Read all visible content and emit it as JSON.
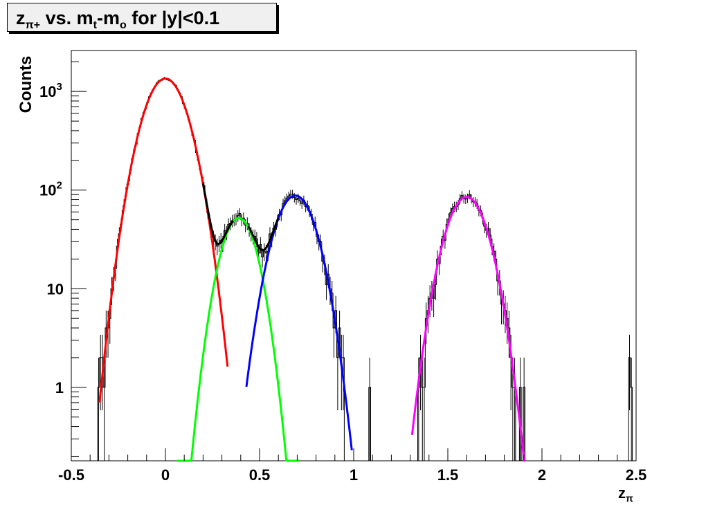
{
  "chart_data": {
    "type": "line",
    "title": {
      "main": "z",
      "main_sub": "π+",
      "part1": " vs. m",
      "part1_sub": "t",
      "part2": "-m",
      "part2_sub": "o",
      "part3": " for |y|<0.1"
    },
    "xlabel": {
      "main": "z",
      "sub": "π"
    },
    "ylabel": "Counts",
    "x_range": [
      -0.5,
      2.5
    ],
    "y_scale": "log",
    "y_range": [
      0.18,
      2600
    ],
    "grid": false,
    "x_ticks": [
      {
        "value": -0.5,
        "label": "-0.5"
      },
      {
        "value": 0,
        "label": "0"
      },
      {
        "value": 0.5,
        "label": "0.5"
      },
      {
        "value": 1,
        "label": "1"
      },
      {
        "value": 1.5,
        "label": "1.5"
      },
      {
        "value": 2,
        "label": "2"
      },
      {
        "value": 2.5,
        "label": "2.5"
      }
    ],
    "y_ticks": [
      {
        "value": 1,
        "label": "1"
      },
      {
        "value": 10,
        "label": "10"
      },
      {
        "value": 100,
        "label": "10",
        "exp": "2"
      },
      {
        "value": 1000,
        "label": "10",
        "exp": "3"
      }
    ],
    "gaussians": [
      {
        "color": "#ff0000",
        "amplitude": 1350,
        "mean": 0.0,
        "sigma": 0.09,
        "x_min": -0.35,
        "x_max": 0.33
      },
      {
        "color": "#00ff00",
        "amplitude": 52,
        "mean": 0.39,
        "sigma": 0.075,
        "x_min": 0.06,
        "x_max": 0.71
      },
      {
        "color": "#0000ff",
        "amplitude": 88,
        "mean": 0.69,
        "sigma": 0.087,
        "x_min": 0.43,
        "x_max": 0.99
      },
      {
        "color": "#ff00ff",
        "amplitude": 85,
        "mean": 1.6,
        "sigma": 0.087,
        "x_min": 1.31,
        "x_max": 1.91
      }
    ],
    "total_fit_color": "#000000",
    "histogram": {
      "x_min": -0.5,
      "x_max": 2.5,
      "bin_width": 0.01,
      "noise_seed": 7,
      "outliers": [
        {
          "x": -0.36,
          "count": 1
        },
        {
          "x": -0.35,
          "count": 2
        },
        {
          "x": -0.34,
          "count": 2
        },
        {
          "x": 1.08,
          "count": 1
        },
        {
          "x": 1.37,
          "count": 1
        },
        {
          "x": 1.88,
          "count": 1
        },
        {
          "x": 1.9,
          "count": 1
        },
        {
          "x": 2.46,
          "count": 2
        },
        {
          "x": 2.47,
          "count": 1
        }
      ]
    }
  }
}
